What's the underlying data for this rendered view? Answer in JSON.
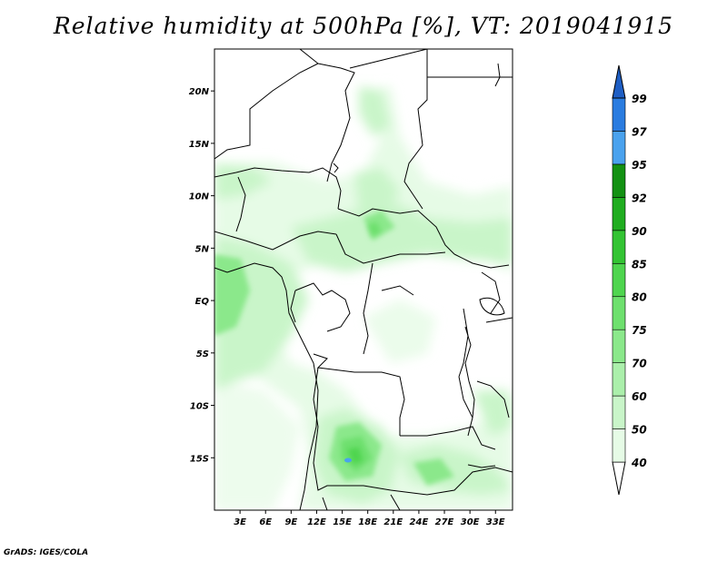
{
  "title": "Relative humidity at 500hPa [%], VT: 2019041915",
  "credit": "GrADS: IGES/COLA",
  "map": {
    "lon_range": [
      0,
      35
    ],
    "lat_range": [
      -20,
      24
    ],
    "lat_ticks": [
      {
        "value": 20,
        "label": "20N"
      },
      {
        "value": 15,
        "label": "15N"
      },
      {
        "value": 10,
        "label": "10N"
      },
      {
        "value": 5,
        "label": "5N"
      },
      {
        "value": 0,
        "label": "EQ"
      },
      {
        "value": -5,
        "label": "5S"
      },
      {
        "value": -10,
        "label": "10S"
      },
      {
        "value": -15,
        "label": "15S"
      }
    ],
    "lon_ticks": [
      {
        "value": 3,
        "label": "3E"
      },
      {
        "value": 6,
        "label": "6E"
      },
      {
        "value": 9,
        "label": "9E"
      },
      {
        "value": 12,
        "label": "12E"
      },
      {
        "value": 15,
        "label": "15E"
      },
      {
        "value": 18,
        "label": "18E"
      },
      {
        "value": 21,
        "label": "21E"
      },
      {
        "value": 24,
        "label": "24E"
      },
      {
        "value": 27,
        "label": "27E"
      },
      {
        "value": 30,
        "label": "30E"
      },
      {
        "value": 33,
        "label": "33E"
      }
    ]
  },
  "colorbar": {
    "levels": [
      "40",
      "50",
      "60",
      "70",
      "75",
      "80",
      "85",
      "90",
      "92",
      "95",
      "97",
      "99"
    ],
    "colors": [
      "#ffffff",
      "#e6fbe6",
      "#c9f5c9",
      "#abefab",
      "#8be88b",
      "#6ee06e",
      "#4fd54f",
      "#33c433",
      "#20ad20",
      "#139113",
      "#4aa2ee",
      "#2a7ce0",
      "#1e5ec4"
    ]
  }
}
